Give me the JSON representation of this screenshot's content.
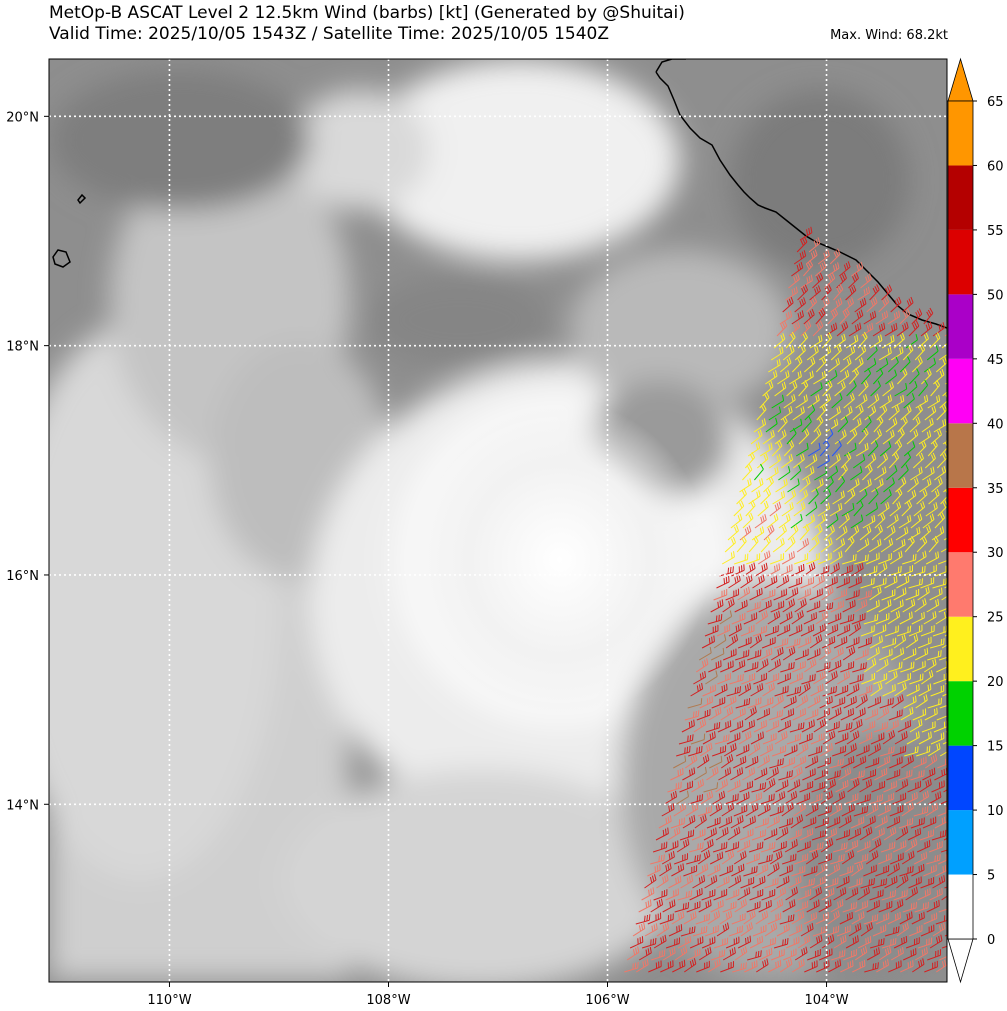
{
  "header": {
    "title_line1": "MetOp-B ASCAT Level 2 12.5km Wind (barbs) [kt] (Generated by @Shuitai)",
    "title_line2": "Valid Time: 2025/10/05 1543Z / Satellite Time: 2025/10/05 1540Z",
    "max_wind": "Max. Wind: 68.2kt"
  },
  "map": {
    "lon_range": [
      -111.1,
      -102.9
    ],
    "lat_range": [
      12.45,
      20.5
    ],
    "lon_ticks": [
      {
        "value": -110,
        "label": "110°W"
      },
      {
        "value": -108,
        "label": "108°W"
      },
      {
        "value": -106,
        "label": "106°W"
      },
      {
        "value": -104,
        "label": "104°W"
      }
    ],
    "lat_ticks": [
      {
        "value": 20,
        "label": "20°N"
      },
      {
        "value": 18,
        "label": "18°N"
      },
      {
        "value": 16,
        "label": "16°N"
      },
      {
        "value": 14,
        "label": "14°N"
      }
    ],
    "gridlines": "dotted white",
    "background": "infrared satellite imagery (grayscale)",
    "coastline_color": "#000000"
  },
  "colorbar": {
    "unit": "kt",
    "levels": [
      0,
      5,
      10,
      15,
      20,
      25,
      30,
      35,
      40,
      45,
      50,
      55,
      60,
      65
    ],
    "colors": [
      "#ffffff",
      "#00a0ff",
      "#0046ff",
      "#00d200",
      "#fff01e",
      "#ff7a6e",
      "#ff0000",
      "#b8764a",
      "#ff00f5",
      "#aa00c8",
      "#dc0000",
      "#b40000",
      "#ff9600"
    ],
    "extend": "both"
  },
  "barb_colors": {
    "low": "#2255ff",
    "green": "#00cc00",
    "yellow": "#ffee22",
    "salmon": "#f07868",
    "red": "#d42020",
    "brown": "#b07a50"
  }
}
